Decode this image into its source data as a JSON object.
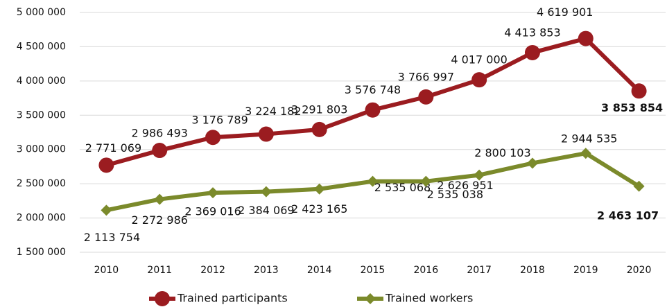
{
  "chart_data": {
    "type": "line",
    "categories": [
      "2010",
      "2011",
      "2012",
      "2013",
      "2014",
      "2015",
      "2016",
      "2017",
      "2018",
      "2019",
      "2020"
    ],
    "series": [
      {
        "name": "Trained participants",
        "color": "#9b1c20",
        "values": [
          2771069,
          2986493,
          3176789,
          3224182,
          3291803,
          3576748,
          3766997,
          4017000,
          4413853,
          4619901,
          3853854
        ],
        "value_labels": [
          "2 771 069",
          "2 986 493",
          "3 176 789",
          "3 224 182",
          "3 291 803",
          "3 576 748",
          "3 766 997",
          "4 017 000",
          "4 413 853",
          "4 619 901",
          "3 853 854"
        ]
      },
      {
        "name": "Trained workers",
        "color": "#7b8a2b",
        "values": [
          2113754,
          2272986,
          2369016,
          2384069,
          2423165,
          2535068,
          2535038,
          2626951,
          2800103,
          2944535,
          2463107
        ],
        "value_labels": [
          "2 113 754",
          "2 272 986",
          "2 369 016",
          "2 384 069",
          "2 423 165",
          "2 535 068",
          "2 535 038",
          "2 626 951",
          "2 800 103",
          "2 944 535",
          "2 463 107"
        ]
      }
    ],
    "ylim": [
      1500000,
      5000000
    ],
    "yticks": [
      {
        "value": 1500000,
        "label": "1 500 000"
      },
      {
        "value": 2000000,
        "label": "2 000 000"
      },
      {
        "value": 2500000,
        "label": "2 500 000"
      },
      {
        "value": 3000000,
        "label": "3 000 000"
      },
      {
        "value": 3500000,
        "label": "3 500 000"
      },
      {
        "value": 4000000,
        "label": "4 000 000"
      },
      {
        "value": 4500000,
        "label": "4 500 000"
      },
      {
        "value": 5000000,
        "label": "5 000 000"
      }
    ],
    "grid": true,
    "legend": "bottom"
  }
}
